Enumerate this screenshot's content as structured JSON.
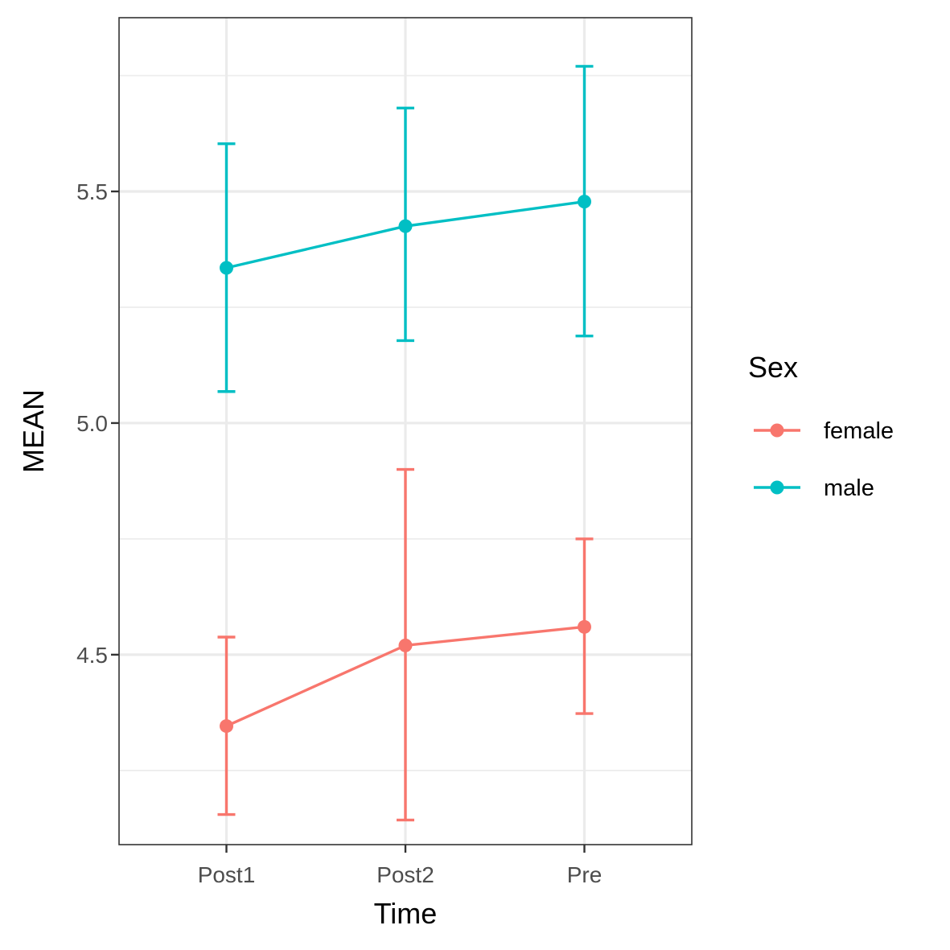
{
  "chart_data": {
    "type": "line",
    "xlabel": "Time",
    "ylabel": "MEAN",
    "categories": [
      "Post1",
      "Post2",
      "Pre"
    ],
    "ylim": [
      4.09,
      5.875
    ],
    "yticks": [
      4.5,
      5.0,
      5.5
    ],
    "ytick_labels": [
      "4.5",
      "5.0",
      "5.5"
    ],
    "y_minor_gridlines": [
      4.25,
      4.75,
      5.25,
      5.75
    ],
    "grid": true,
    "legend": {
      "title": "Sex",
      "placement": "right",
      "items": [
        "female",
        "male"
      ]
    },
    "series": [
      {
        "name": "female",
        "color": "#F8766D",
        "values": [
          4.346,
          4.52,
          4.56
        ],
        "error_low": [
          4.155,
          4.143,
          4.373
        ],
        "error_high": [
          4.538,
          4.9,
          4.75
        ]
      },
      {
        "name": "male",
        "color": "#00BFC4",
        "values": [
          5.335,
          5.425,
          5.478
        ],
        "error_low": [
          5.068,
          5.178,
          5.188
        ],
        "error_high": [
          5.603,
          5.68,
          5.77
        ]
      }
    ]
  }
}
